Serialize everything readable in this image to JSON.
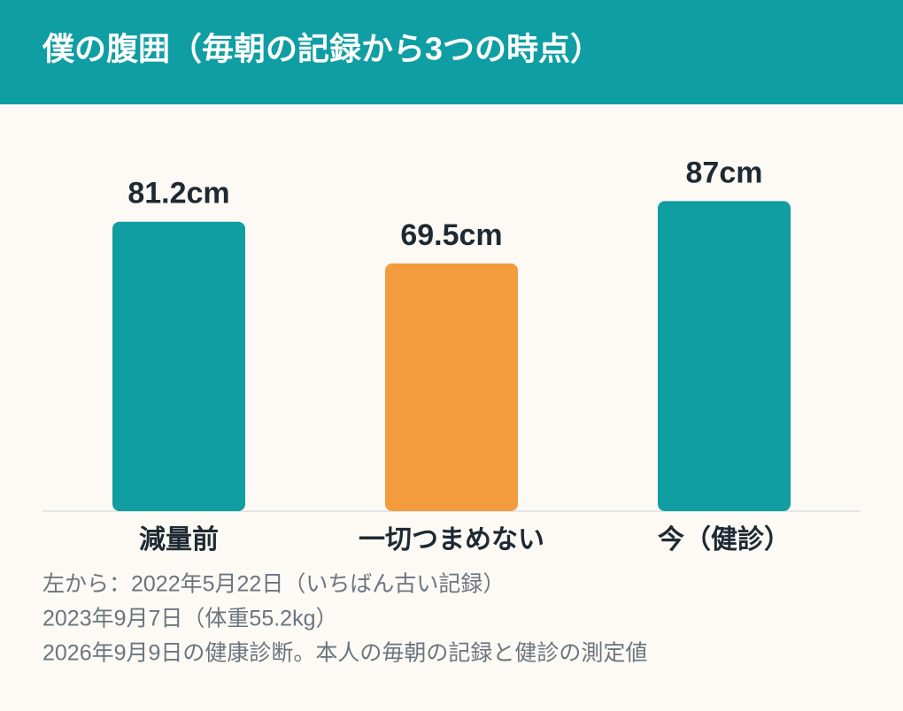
{
  "chart_data": {
    "type": "bar",
    "title": "僕の腹囲（毎朝の記録から3つの時点）",
    "categories": [
      "減量前",
      "一切つまめない",
      "今（健診）"
    ],
    "values": [
      81.2,
      69.5,
      87
    ],
    "value_labels": [
      "81.2cm",
      "69.5cm",
      "87cm"
    ],
    "colors": [
      "#109ea2",
      "#f39c3e",
      "#109ea2"
    ],
    "notes": [
      "左から：2022年5月22日（いちばん古い記録）",
      "2023年9月7日（体重55.2kg）",
      "2026年9月9日の健康診断。本人の毎朝の記録と健診の測定値"
    ]
  }
}
